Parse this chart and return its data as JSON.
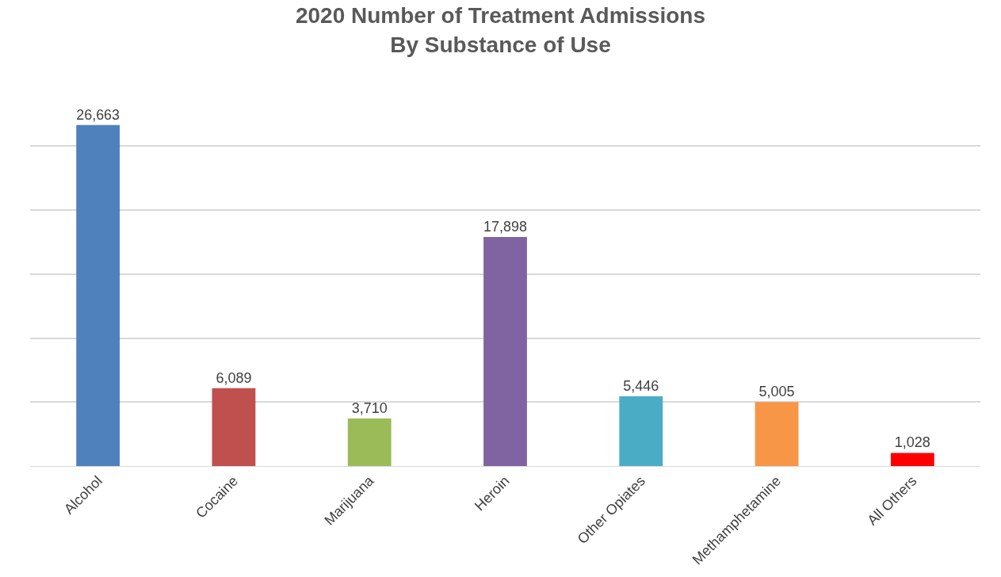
{
  "chart_data": {
    "type": "bar",
    "title": "2020 Number of Treatment Admissions\nBy Substance of Use",
    "categories": [
      "Alcohol",
      "Cocaine",
      "Marijuana",
      "Heroin",
      "Other Opiates",
      "Methamphetamine",
      "All Others"
    ],
    "values": [
      26663,
      6089,
      3710,
      17898,
      5446,
      5005,
      1028
    ],
    "value_labels": [
      "26,663",
      "6,089",
      "3,710",
      "17,898",
      "5,446",
      "5,005",
      "1,028"
    ],
    "colors": [
      "#4f81bd",
      "#c0504d",
      "#9bbb59",
      "#8064a2",
      "#4bacc6",
      "#f79646",
      "#ff0000"
    ],
    "grid": "y",
    "tick_labels": "x"
  }
}
